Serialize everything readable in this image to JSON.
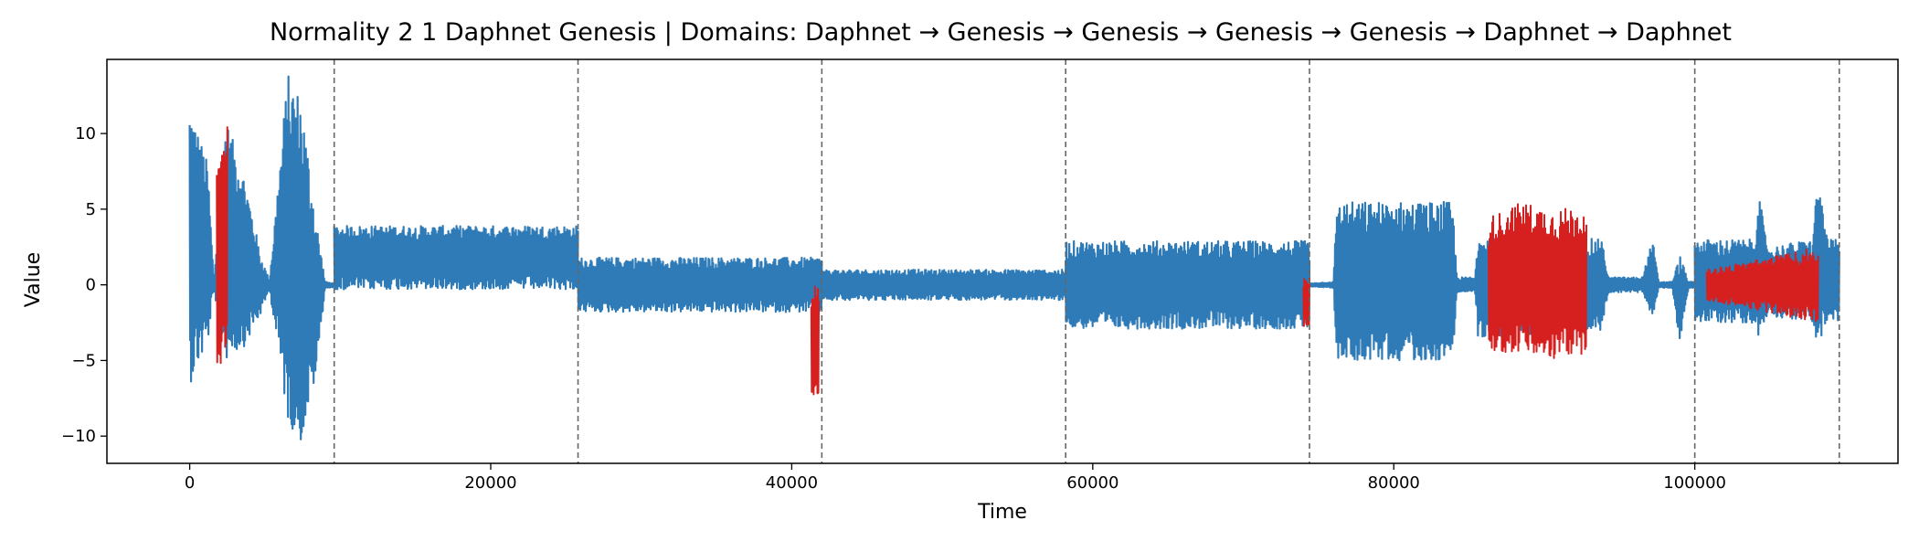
{
  "chart_data": {
    "type": "line",
    "title": "Normality 2 1 Daphnet Genesis  |  Domains: Daphnet → Genesis → Genesis → Genesis → Genesis → Daphnet → Daphnet",
    "xlabel": "Time",
    "ylabel": "Value",
    "xlim": [
      -5500,
      113500
    ],
    "ylim": [
      -11.8,
      14.9
    ],
    "xticks": [
      0,
      20000,
      40000,
      60000,
      80000,
      100000
    ],
    "xtick_labels": [
      "0",
      "20000",
      "40000",
      "60000",
      "80000",
      "100000"
    ],
    "yticks": [
      10,
      5,
      0,
      -5,
      -10
    ],
    "ytick_labels": [
      "10",
      "5",
      "0",
      "−5",
      "−10"
    ],
    "grid": false,
    "colors": {
      "normal": "#2e7bb8",
      "anomaly": "#d62020",
      "boundary": "#666666"
    },
    "domain_boundaries": [
      9600,
      25800,
      42000,
      58200,
      74400,
      100000,
      109600
    ],
    "series": [
      {
        "role": "normal",
        "segments": [
          {
            "x": [
              0,
              9600
            ],
            "envelope": [
              [
                0,
                -6.6,
                12
              ],
              [
                1200,
                -4,
                8
              ],
              [
                1600,
                -0.3,
                0.3
              ],
              [
                2400,
                -5,
                11
              ],
              [
                3700,
                -4,
                7
              ],
              [
                4700,
                -2,
                2
              ],
              [
                5300,
                -0.3,
                0.3
              ],
              [
                6500,
                -9,
                14
              ],
              [
                7400,
                -10.5,
                12.5
              ],
              [
                8400,
                -6,
                4.5
              ],
              [
                9000,
                -0.2,
                0.2
              ],
              [
                9600,
                -0.2,
                0.1
              ]
            ]
          },
          {
            "x": [
              9600,
              25800
            ],
            "envelope": [
              [
                9600,
                -0.3,
                3.9
              ],
              [
                25800,
                -0.3,
                3.9
              ]
            ]
          },
          {
            "x": [
              25800,
              42000
            ],
            "envelope": [
              [
                25800,
                -1.8,
                1.8
              ],
              [
                42000,
                -1.8,
                1.8
              ]
            ]
          },
          {
            "x": [
              42000,
              58200
            ],
            "envelope": [
              [
                42000,
                -1,
                1
              ],
              [
                58200,
                -1,
                1
              ]
            ]
          },
          {
            "x": [
              58200,
              74400
            ],
            "envelope": [
              [
                58200,
                -2.9,
                2.9
              ],
              [
                74400,
                -2.9,
                2.9
              ]
            ]
          },
          {
            "x": [
              74400,
              100000
            ],
            "envelope": [
              [
                74400,
                -0.1,
                0.1
              ],
              [
                76000,
                -0.2,
                0.2
              ],
              [
                76200,
                -5,
                5.5
              ],
              [
                83900,
                -5,
                5.5
              ],
              [
                84200,
                -0.5,
                0.5
              ],
              [
                85400,
                -0.5,
                0.5
              ],
              [
                85600,
                -3.5,
                3.5
              ],
              [
                93800,
                -3,
                3
              ],
              [
                94300,
                -0.5,
                0.5
              ],
              [
                96500,
                -0.5,
                0.5
              ],
              [
                97200,
                -2.5,
                3
              ],
              [
                97600,
                -0.2,
                0.2
              ],
              [
                98500,
                -0.2,
                0.2
              ],
              [
                99000,
                -4,
                2
              ],
              [
                99600,
                -0.2,
                0.2
              ],
              [
                100000,
                -0.2,
                0.2
              ]
            ]
          },
          {
            "x": [
              100000,
              109600
            ],
            "envelope": [
              [
                100000,
                -2.5,
                3
              ],
              [
                104000,
                -2.5,
                3
              ],
              [
                104200,
                -4,
                6.5
              ],
              [
                104800,
                -2,
                2.5
              ],
              [
                107800,
                -2.5,
                3
              ],
              [
                108200,
                -4,
                7.3
              ],
              [
                108800,
                -2.5,
                3
              ],
              [
                109600,
                -2.5,
                3
              ]
            ]
          }
        ]
      },
      {
        "role": "anomaly",
        "segments": [
          {
            "x": [
              1800,
              2500
            ],
            "envelope": [
              [
                1800,
                -5.5,
                8
              ],
              [
                2500,
                -5.5,
                11
              ]
            ]
          },
          {
            "x": [
              41300,
              41800
            ],
            "envelope": [
              [
                41300,
                -7.3,
                0
              ],
              [
                41800,
                -7.2,
                0
              ]
            ]
          },
          {
            "x": [
              74000,
              74400
            ],
            "envelope": [
              [
                74000,
                -2.8,
                0.5
              ],
              [
                74400,
                -2.8,
                0.5
              ]
            ]
          },
          {
            "x": [
              86300,
              92800
            ],
            "envelope": [
              [
                86300,
                -4.5,
                4.5
              ],
              [
                88500,
                -4.5,
                5.5
              ],
              [
                90500,
                -5,
                5
              ],
              [
                92800,
                -4.5,
                5.2
              ]
            ]
          },
          {
            "x": [
              100800,
              108200
            ],
            "envelope": [
              [
                100800,
                -1,
                1
              ],
              [
                108200,
                -2.5,
                2.5
              ]
            ]
          }
        ]
      }
    ]
  }
}
